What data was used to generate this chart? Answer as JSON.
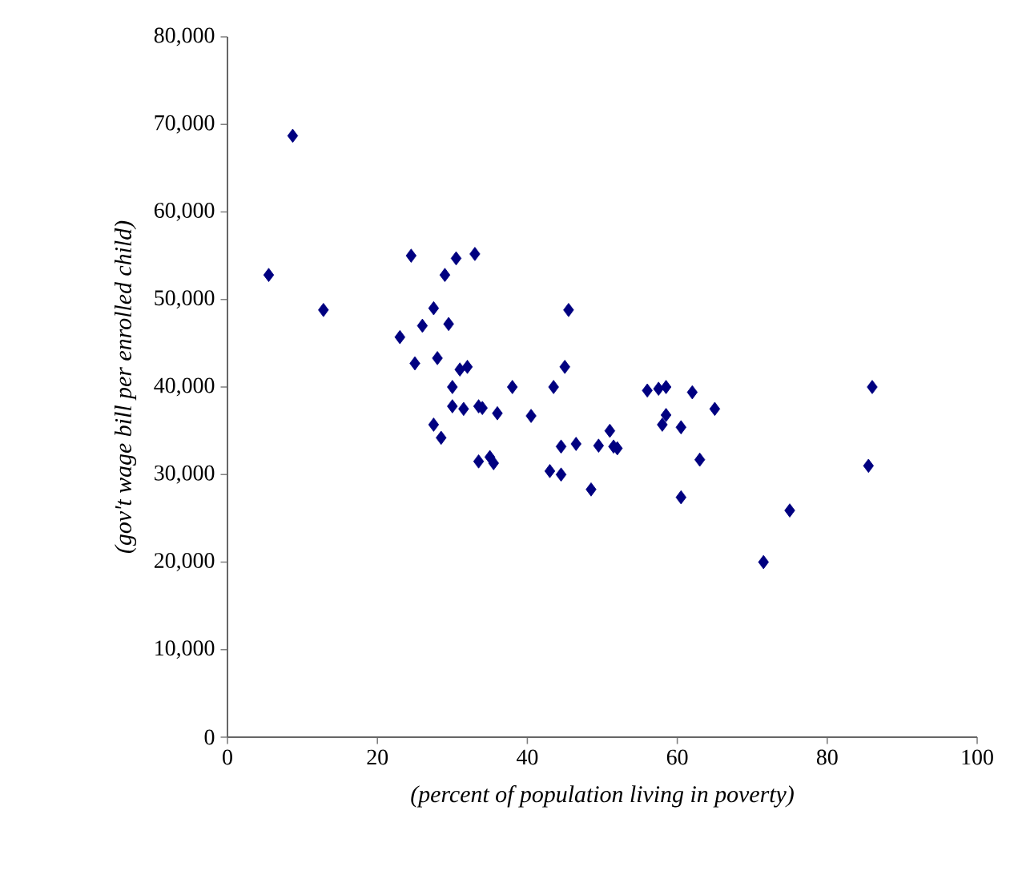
{
  "chart_data": {
    "type": "scatter",
    "xlabel": "(percent of population living in poverty)",
    "ylabel": "(gov't wage bill per enrolled child)",
    "xlim": [
      0,
      100
    ],
    "xticks": [
      0,
      20,
      40,
      60,
      80,
      100
    ],
    "ylim": [
      0,
      80000
    ],
    "yticks": [
      {
        "value": 0,
        "label": "0"
      },
      {
        "value": 10000,
        "label": "10,000"
      },
      {
        "value": 20000,
        "label": "20,000"
      },
      {
        "value": 30000,
        "label": "30,000"
      },
      {
        "value": 40000,
        "label": "40,000"
      },
      {
        "value": 50000,
        "label": "50,000"
      },
      {
        "value": 60000,
        "label": "60,000"
      },
      {
        "value": 70000,
        "label": "70,000"
      },
      {
        "value": 80000,
        "label": "80,000"
      }
    ],
    "grid": false,
    "marker": "diamond",
    "series": [
      {
        "color": "#000080",
        "x": [
          5.5,
          8.7,
          12.8,
          23,
          24.5,
          25,
          26,
          27.5,
          27.5,
          28,
          28.5,
          29,
          29.5,
          30,
          30,
          30.5,
          31,
          31.5,
          32,
          33,
          33.5,
          33.5,
          34,
          35,
          35.5,
          36,
          38,
          40.5,
          43,
          43.5,
          44.5,
          44.5,
          45,
          45.5,
          46.5,
          48.5,
          49.5,
          51,
          51.5,
          52,
          56,
          57.5,
          58,
          58.5,
          58.5,
          60.5,
          60.5,
          62,
          63,
          65,
          71.5,
          75,
          85.5,
          86
        ],
        "values": [
          52800,
          68700,
          48800,
          45700,
          55000,
          42700,
          47000,
          49000,
          35700,
          43300,
          34200,
          52800,
          47200,
          40000,
          37800,
          54700,
          42000,
          37500,
          42300,
          55200,
          37800,
          31500,
          37600,
          32000,
          31300,
          37000,
          40000,
          36700,
          30400,
          40000,
          30000,
          33200,
          42300,
          48800,
          33500,
          28300,
          33300,
          35000,
          33200,
          33000,
          39600,
          39800,
          35700,
          36800,
          40000,
          35400,
          27400,
          39400,
          31700,
          37500,
          20000,
          25900,
          31000,
          40000
        ]
      }
    ]
  }
}
